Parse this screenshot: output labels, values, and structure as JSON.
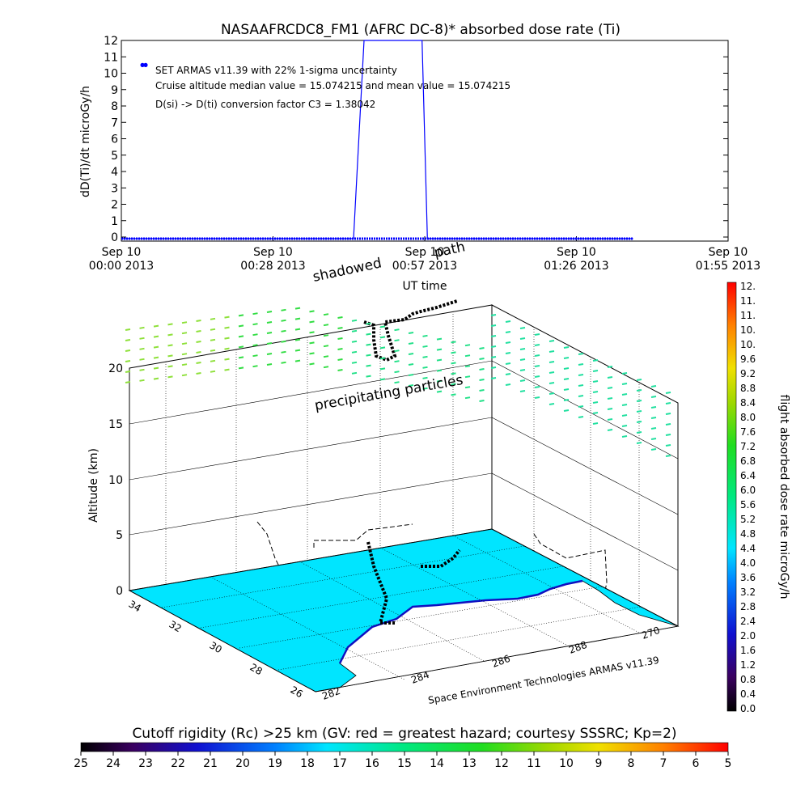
{
  "chart_data": [
    {
      "type": "line",
      "title": "NASAAFRCDC8_FM1 (AFRC DC-8)* absorbed dose rate (Ti)",
      "ylabel": "dD(Ti)/dt microGy/h",
      "xlabel": "UT time",
      "ylim": [
        0,
        12
      ],
      "y_ticks": [
        "0",
        "1",
        "2",
        "3",
        "4",
        "5",
        "6",
        "7",
        "8",
        "9",
        "10",
        "11",
        "12"
      ],
      "x_ticks": [
        {
          "l1": "Sep 10",
          "l2": "00:00 2013"
        },
        {
          "l1": "Sep 10",
          "l2": "00:28 2013"
        },
        {
          "l1": "Sep 10",
          "l2": "00:57 2013"
        },
        {
          "l1": "Sep 10",
          "l2": "01:26 2013"
        },
        {
          "l1": "Sep 10",
          "l2": "01:55 2013"
        }
      ],
      "xlim_minutes": [
        0,
        115
      ],
      "annotations": [
        "SET ARMAS v11.39 with 22% 1-sigma uncertainty",
        "Cruise altitude median value = 15.074215 and mean value = 15.074215",
        "D(si) -> D(ti) conversion factor C3 = 1.38042"
      ],
      "series": [
        {
          "color": "#0000ff",
          "line_x": [
            0,
            11,
            23,
            35,
            44,
            46,
            49,
            52,
            55,
            57,
            58,
            60,
            72,
            86,
            97
          ],
          "line_y": [
            -0.1,
            -0.1,
            -0.1,
            -0.1,
            -0.1,
            12,
            12,
            12,
            12,
            12,
            -0.1,
            -0.1,
            -0.1,
            -0.1,
            -0.1
          ],
          "points_x": [
            4,
            4.6
          ],
          "points_y": [
            10.5,
            10.5
          ]
        }
      ]
    },
    {
      "type": "scatter",
      "labels": {
        "shadowed": "shadowed",
        "path": "path",
        "precipitating": "precipitating particles",
        "zlabel": "Altitude (km)",
        "credit": "Space Environment Technologies ARMAS v11.39"
      },
      "z_ticks": [
        "0",
        "5",
        "10",
        "15",
        "20"
      ],
      "lat_ticks": [
        "34",
        "32",
        "30",
        "28",
        "26"
      ],
      "lon_ticks": [
        "282",
        "284",
        "286",
        "288",
        "270"
      ]
    },
    {
      "type": "heatmap",
      "ylabel": "flight absorbed dose rate microGy/h",
      "ticks": [
        "0.0",
        "0.4",
        "0.8",
        "1.2",
        "1.6",
        "2.0",
        "2.4",
        "2.8",
        "3.2",
        "3.6",
        "4.0",
        "4.4",
        "4.8",
        "5.2",
        "5.6",
        "6.0",
        "6.4",
        "6.8",
        "7.2",
        "7.6",
        "8.0",
        "8.4",
        "8.8",
        "9.2",
        "9.6",
        "10.",
        "10.",
        "11.",
        "11.",
        "12."
      ],
      "range": [
        0,
        12
      ]
    },
    {
      "type": "heatmap",
      "title": "Cutoff rigidity (Rc) >25 km (GV: red = greatest hazard; courtesy SSSRC; Kp=2)",
      "ticks": [
        "25",
        "24",
        "23",
        "22",
        "21",
        "20",
        "19",
        "18",
        "17",
        "16",
        "15",
        "14",
        "13",
        "12",
        "11",
        "10",
        "9",
        "8",
        "7",
        "6",
        "5"
      ],
      "range": [
        25,
        5
      ]
    }
  ],
  "colors": {
    "series": "#0000ff",
    "surface": "#00e5ff",
    "green": "#22dd55",
    "path": "#000000"
  }
}
